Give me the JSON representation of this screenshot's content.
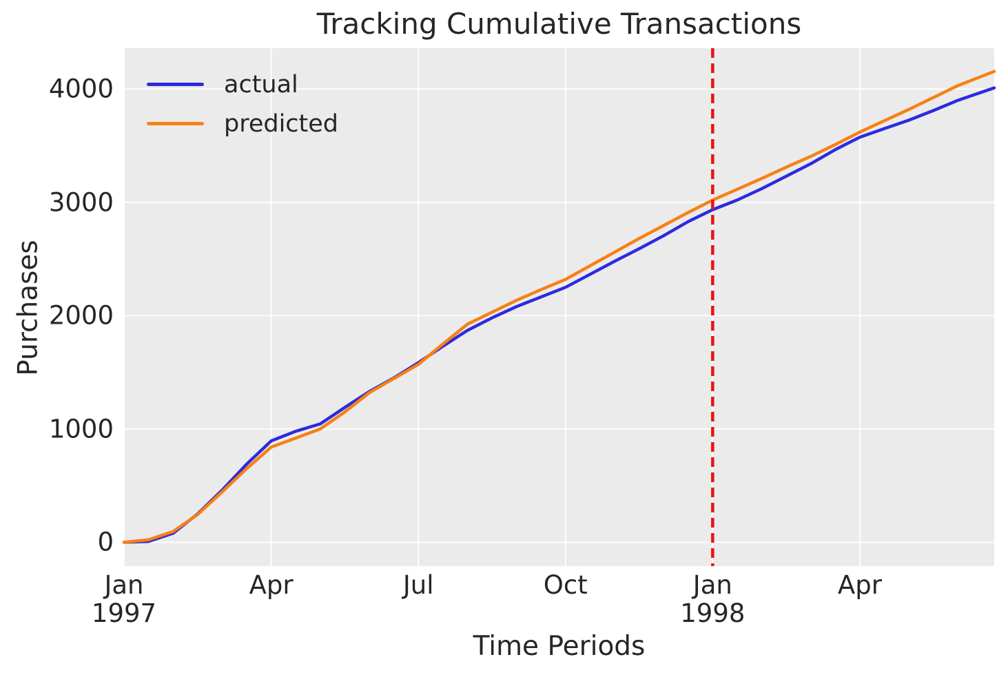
{
  "chart_data": {
    "type": "line",
    "title": "Tracking Cumulative Transactions",
    "xlabel": "Time Periods",
    "ylabel": "Purchases",
    "x_unit": "months since Jan 1997",
    "x": [
      0,
      0.5,
      1,
      1.5,
      2,
      2.5,
      3,
      3.5,
      4,
      4.5,
      5,
      5.5,
      6,
      6.5,
      7,
      7.5,
      8,
      8.5,
      9,
      9.5,
      10,
      10.5,
      11,
      11.5,
      12,
      12.5,
      13,
      13.5,
      14,
      14.5,
      15,
      15.5,
      16,
      16.5,
      17,
      17.74
    ],
    "series": [
      {
        "name": "actual",
        "color": "#2b2be0",
        "values": [
          0,
          8,
          80,
          250,
          460,
          690,
          895,
          980,
          1045,
          1190,
          1330,
          1450,
          1585,
          1730,
          1870,
          1980,
          2080,
          2165,
          2250,
          2365,
          2480,
          2590,
          2705,
          2830,
          2935,
          3020,
          3120,
          3230,
          3340,
          3465,
          3575,
          3650,
          3725,
          3810,
          3900,
          4010
        ]
      },
      {
        "name": "predicted",
        "color": "#f78114",
        "values": [
          0,
          22,
          95,
          245,
          445,
          650,
          840,
          920,
          1000,
          1150,
          1320,
          1445,
          1570,
          1750,
          1925,
          2030,
          2135,
          2230,
          2320,
          2440,
          2560,
          2680,
          2795,
          2910,
          3020,
          3115,
          3210,
          3310,
          3405,
          3510,
          3620,
          3720,
          3820,
          3925,
          4030,
          4155
        ]
      }
    ],
    "vline": {
      "x": 12,
      "color": "#ee1111",
      "style": "dashed"
    },
    "xticks": [
      {
        "pos": 0,
        "label": "Jan",
        "year": "1997"
      },
      {
        "pos": 3,
        "label": "Apr",
        "year": ""
      },
      {
        "pos": 6,
        "label": "Jul",
        "year": ""
      },
      {
        "pos": 9,
        "label": "Oct",
        "year": ""
      },
      {
        "pos": 12,
        "label": "Jan",
        "year": "1998"
      },
      {
        "pos": 15,
        "label": "Apr",
        "year": ""
      }
    ],
    "yticks": [
      0,
      1000,
      2000,
      3000,
      4000
    ],
    "xlim": [
      0,
      17.74
    ],
    "ylim": [
      -210,
      4360
    ],
    "grid": true,
    "legend_position": "upper left",
    "plot_bg": "#ebebeb",
    "grid_color": "#ffffff",
    "text_color": "#262626"
  }
}
